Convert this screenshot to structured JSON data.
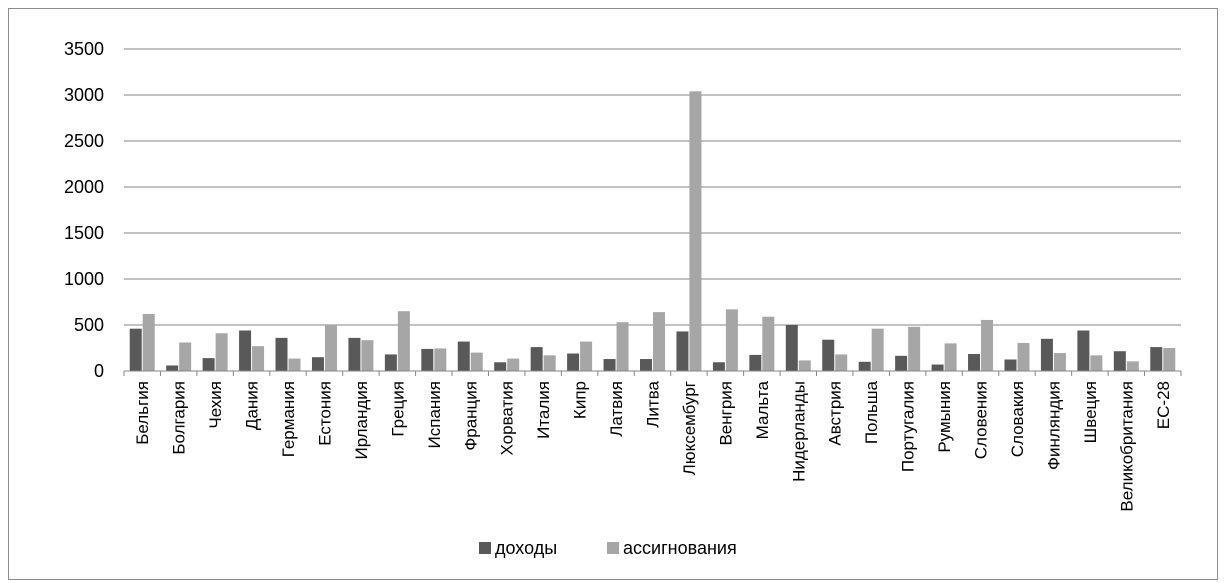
{
  "chart_data": {
    "type": "bar",
    "categories": [
      "Бельгия",
      "Болгария",
      "Чехия",
      "Дания",
      "Германия",
      "Естония",
      "Ирландия",
      "Греция",
      "Испания",
      "Франция",
      "Хорватия",
      "Италия",
      "Кипр",
      "Латвия",
      "Литва",
      "Люксембург",
      "Венгрия",
      "Мальта",
      "Нидерланды",
      "Австрия",
      "Польша",
      "Португалия",
      "Румыния",
      "Словения",
      "Словакия",
      "Финляндия",
      "Швеция",
      "Великобритания",
      "ЕС-28"
    ],
    "series": [
      {
        "name": "доходы",
        "color": "#595959",
        "values": [
          460,
          60,
          140,
          440,
          360,
          150,
          360,
          180,
          240,
          320,
          95,
          260,
          190,
          130,
          130,
          430,
          95,
          175,
          500,
          340,
          100,
          165,
          70,
          185,
          125,
          350,
          440,
          215,
          260
        ]
      },
      {
        "name": "ассигнования",
        "color": "#a6a6a6",
        "values": [
          620,
          310,
          410,
          270,
          135,
          500,
          335,
          650,
          245,
          200,
          135,
          170,
          320,
          530,
          640,
          3040,
          670,
          590,
          115,
          180,
          460,
          480,
          300,
          555,
          305,
          195,
          170,
          105,
          250
        ]
      }
    ],
    "yticks": [
      "0",
      "500",
      "1000",
      "1500",
      "2000",
      "2500",
      "3000",
      "3500"
    ],
    "ylim": [
      0,
      3500
    ],
    "grid": true,
    "legend": "bottom"
  }
}
